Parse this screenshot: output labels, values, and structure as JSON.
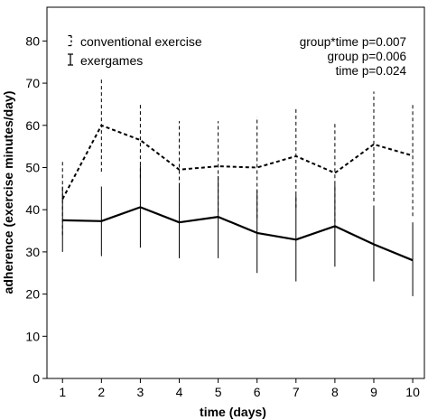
{
  "chart_data": {
    "type": "line",
    "title": "",
    "xlabel": "time (days)",
    "ylabel": "adherence (exercise minutes/day)",
    "x": [
      1,
      2,
      3,
      4,
      5,
      6,
      7,
      8,
      9,
      10
    ],
    "x_ticks": [
      "1",
      "2",
      "3",
      "4",
      "5",
      "6",
      "7",
      "8",
      "9",
      "10"
    ],
    "y_ticks": [
      "0",
      "10",
      "20",
      "30",
      "40",
      "50",
      "60",
      "70",
      "80"
    ],
    "xlim": [
      0.6,
      10.3
    ],
    "ylim": [
      0,
      88
    ],
    "grid": false,
    "legend_position": "top-left",
    "series": [
      {
        "name": "conventional exercise",
        "line_style": "dashed",
        "values": [
          42.5,
          60.0,
          56.5,
          49.5,
          50.3,
          50.0,
          52.7,
          48.7,
          55.5,
          52.8
        ],
        "error_low": [
          34.0,
          49.0,
          47.5,
          38.0,
          39.5,
          38.0,
          40.5,
          35.5,
          42.0,
          38.5
        ],
        "error_high": [
          51.5,
          71.0,
          65.5,
          61.0,
          61.0,
          62.0,
          64.0,
          60.5,
          68.0,
          65.0
        ]
      },
      {
        "name": "exergames",
        "line_style": "solid",
        "values": [
          37.5,
          37.3,
          40.6,
          37.0,
          38.3,
          34.5,
          32.9,
          36.1,
          31.8,
          28.0
        ],
        "error_low": [
          30.0,
          29.0,
          31.0,
          28.5,
          28.5,
          25.0,
          23.0,
          26.5,
          23.0,
          19.5
        ],
        "error_high": [
          45.5,
          45.5,
          50.5,
          46.0,
          48.0,
          44.5,
          43.5,
          46.0,
          41.0,
          37.0
        ]
      }
    ],
    "annotations": [
      "group*time p=0.007",
      "group p=0.006",
      "time p=0.024"
    ],
    "colors": {
      "line": "#000000",
      "background": "#ffffff"
    }
  }
}
